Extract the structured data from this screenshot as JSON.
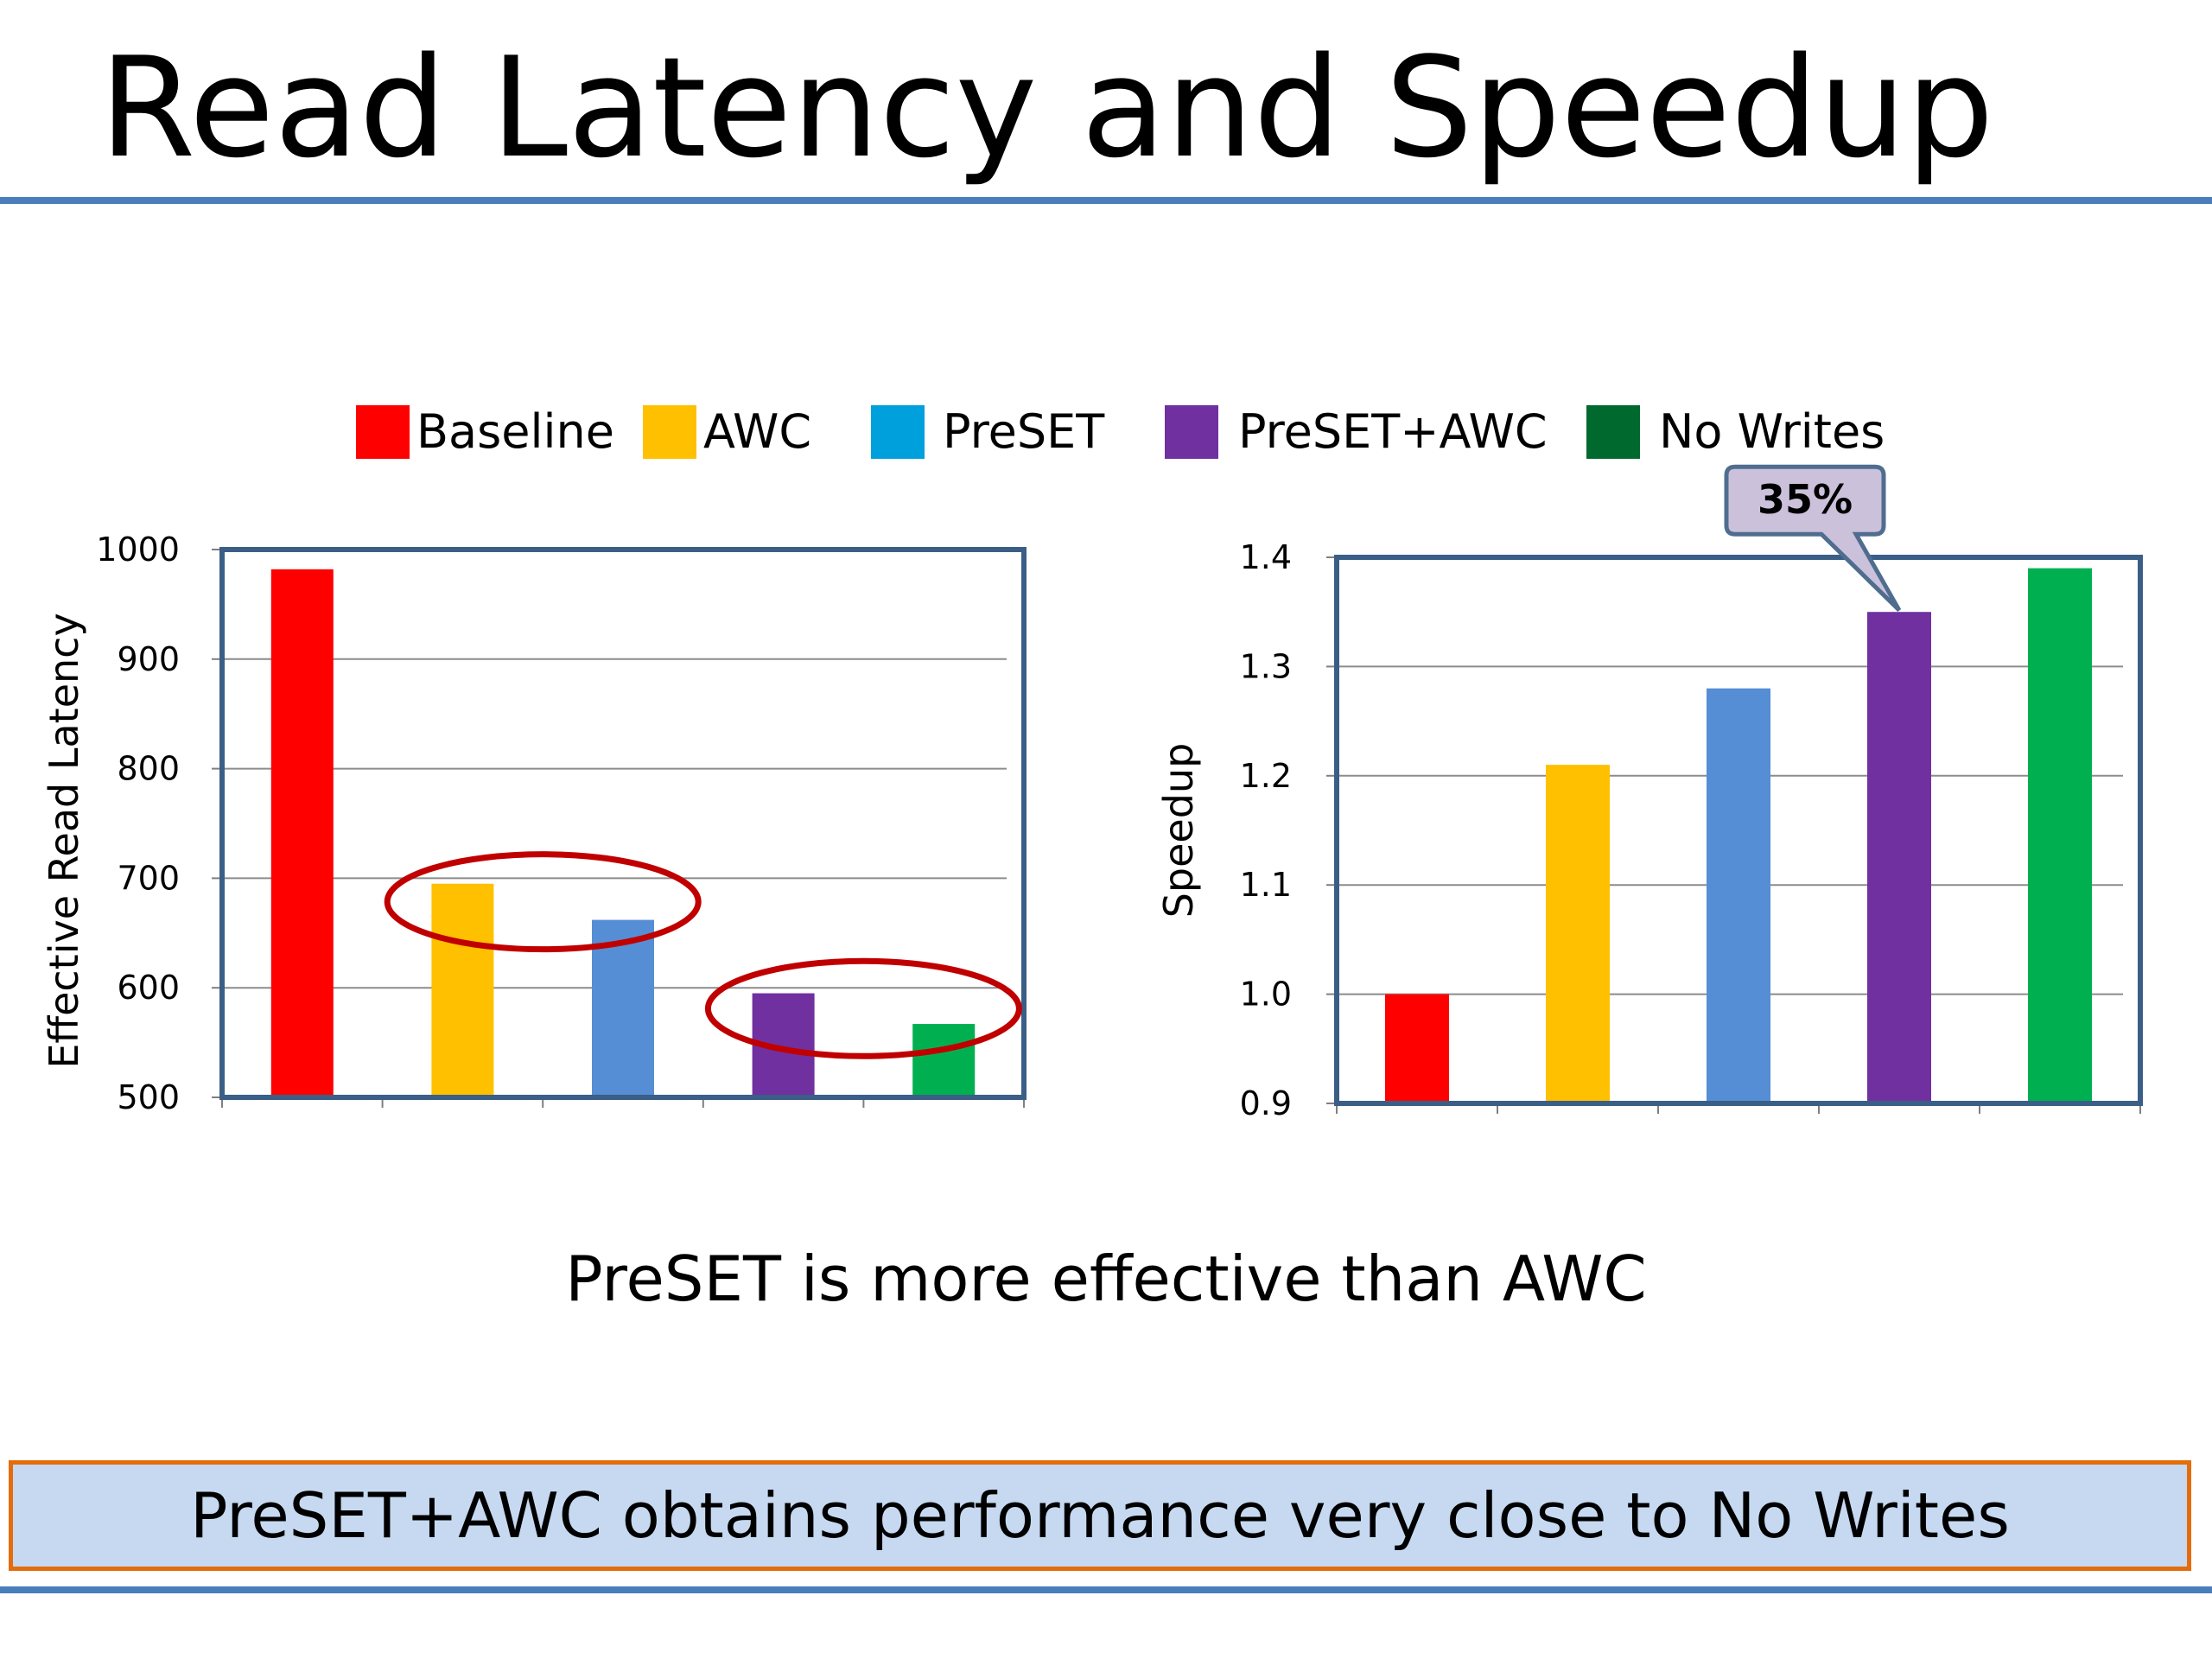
{
  "slide": {
    "title": "Read Latency and Speedup",
    "caption": "PreSET is more effective than AWC",
    "conclusion": "PreSET+AWC obtains performance very close to No Writes"
  },
  "legend": [
    {
      "label": "Baseline",
      "color": "#ff0000"
    },
    {
      "label": "AWC",
      "color": "#ffc000"
    },
    {
      "label": "PreSET",
      "color": "#00a0dc"
    },
    {
      "label": "PreSET+AWC",
      "color": "#7030a0"
    },
    {
      "label": "No Writes",
      "color": "#006a2e"
    }
  ],
  "chart_data": [
    {
      "type": "bar",
      "categories": [
        "Baseline",
        "AWC",
        "PreSET",
        "PreSET+AWC",
        "No Writes"
      ],
      "values": [
        982,
        695,
        662,
        595,
        567
      ],
      "colors": [
        "#ff0000",
        "#ffc000",
        "#558ed5",
        "#7030a0",
        "#00b050"
      ],
      "xlabel": "",
      "ylabel": "Effective Read Latency",
      "ylim": [
        500,
        1000
      ],
      "yticks": [
        "500",
        "600",
        "700",
        "800",
        "900",
        "1000"
      ],
      "grid": true,
      "annotations": [
        {
          "type": "ellipse",
          "encircles": [
            "AWC",
            "PreSET"
          ],
          "color": "#c00000"
        },
        {
          "type": "ellipse",
          "encircles": [
            "PreSET+AWC",
            "No Writes"
          ],
          "color": "#c00000"
        }
      ]
    },
    {
      "type": "bar",
      "categories": [
        "Baseline",
        "AWC",
        "PreSET",
        "PreSET+AWC",
        "No Writes"
      ],
      "values": [
        1.0,
        1.21,
        1.28,
        1.35,
        1.39
      ],
      "colors": [
        "#ff0000",
        "#ffc000",
        "#558ed5",
        "#7030a0",
        "#00b050"
      ],
      "xlabel": "",
      "ylabel": "Speedup",
      "ylim": [
        0.9,
        1.4
      ],
      "yticks": [
        "0.9",
        "1.0",
        "1.1",
        "1.2",
        "1.3",
        "1.4"
      ],
      "grid": true,
      "annotations": [
        {
          "type": "callout",
          "text": "35%",
          "target": "PreSET+AWC",
          "fill": "#ccc1da",
          "stroke": "#4f6d8f"
        }
      ]
    }
  ]
}
